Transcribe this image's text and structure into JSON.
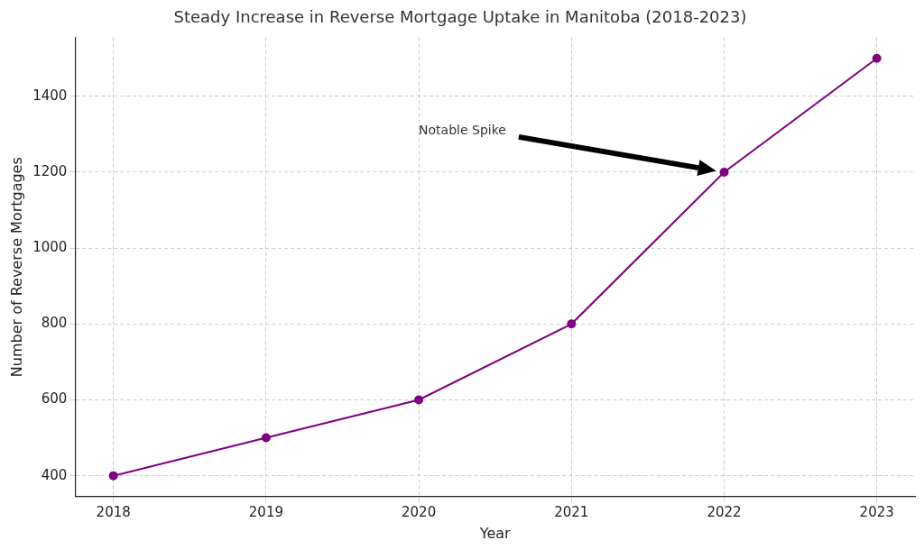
{
  "chart_data": {
    "type": "line",
    "title": "Steady Increase in Reverse Mortgage Uptake in Manitoba (2018-2023)",
    "x_label": "Year",
    "y_label": "Number of Reverse Mortgages",
    "x": [
      2018,
      2019,
      2020,
      2021,
      2022,
      2023
    ],
    "values": [
      400,
      500,
      600,
      800,
      1200,
      1500
    ],
    "color": "#800080",
    "marker": "circle",
    "line_style": "solid",
    "xlim": [
      2017.75,
      2023.25
    ],
    "xticks": [
      2018,
      2019,
      2020,
      2021,
      2022,
      2023
    ],
    "ylim": [
      345,
      1555
    ],
    "yticks": [
      400,
      600,
      800,
      1000,
      1200,
      1400
    ],
    "grid": true,
    "annotations": [
      {
        "text": "Notable Spike",
        "x": 2020,
        "y": 1300,
        "arrow_x": 2022,
        "arrow_y": 1200
      }
    ]
  }
}
